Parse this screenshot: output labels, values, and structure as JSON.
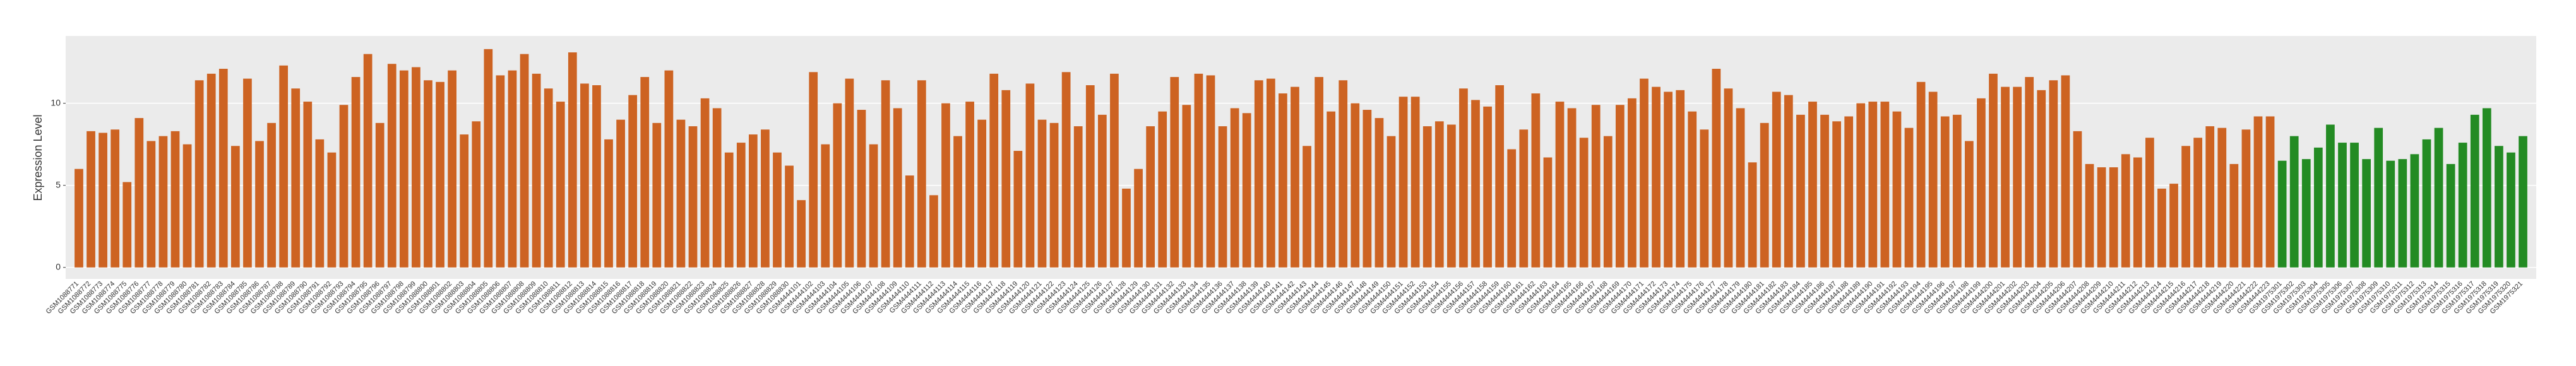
{
  "chart_data": {
    "type": "bar",
    "y_label": "Expression Level",
    "ylim": [
      -0.7,
      14.1
    ],
    "yticks": [
      0,
      5,
      10
    ],
    "grid": true,
    "series": [
      {
        "color": "#cd6322",
        "categories": [
          "GSM1088771",
          "GSM1088772",
          "GSM1088773",
          "GSM1088774",
          "GSM1088775",
          "GSM1088776",
          "GSM1088777",
          "GSM1088778",
          "GSM1088779",
          "GSM1088780",
          "GSM1088781",
          "GSM1088782",
          "GSM1088783",
          "GSM1088784",
          "GSM1088785",
          "GSM1088786",
          "GSM1088787",
          "GSM1088788",
          "GSM1088789",
          "GSM1088790",
          "GSM1088791",
          "GSM1088792",
          "GSM1088793",
          "GSM1088794",
          "GSM1088795",
          "GSM1088796",
          "GSM1088797",
          "GSM1088798",
          "GSM1088799",
          "GSM1088800",
          "GSM1088801",
          "GSM1088802",
          "GSM1088803",
          "GSM1088804",
          "GSM1088805",
          "GSM1088806",
          "GSM1088807",
          "GSM1088808",
          "GSM1088809",
          "GSM1088810",
          "GSM1088811",
          "GSM1088812",
          "GSM1088813",
          "GSM1088814",
          "GSM1088815",
          "GSM1088816",
          "GSM1088817",
          "GSM1088818",
          "GSM1088819",
          "GSM1088820",
          "GSM1088821",
          "GSM1088822",
          "GSM1088823",
          "GSM1088824",
          "GSM1088825",
          "GSM1088826",
          "GSM1088827",
          "GSM1088828",
          "GSM1088829",
          "GSM1088830",
          "GSM4444101",
          "GSM4444102",
          "GSM4444103",
          "GSM4444104",
          "GSM4444105",
          "GSM4444106",
          "GSM4444107",
          "GSM4444108",
          "GSM4444109",
          "GSM4444110",
          "GSM4444111",
          "GSM4444112",
          "GSM4444113",
          "GSM4444114",
          "GSM4444115",
          "GSM4444116",
          "GSM4444117",
          "GSM4444118",
          "GSM4444119",
          "GSM4444120",
          "GSM4444121",
          "GSM4444122",
          "GSM4444123",
          "GSM4444124",
          "GSM4444125",
          "GSM4444126",
          "GSM4444127",
          "GSM4444128",
          "GSM4444129",
          "GSM4444130",
          "GSM4444131",
          "GSM4444132",
          "GSM4444133",
          "GSM4444134",
          "GSM4444135",
          "GSM4444136",
          "GSM4444137",
          "GSM4444138",
          "GSM4444139",
          "GSM4444140",
          "GSM4444141",
          "GSM4444142",
          "GSM4444143",
          "GSM4444144",
          "GSM4444145",
          "GSM4444146",
          "GSM4444147",
          "GSM4444148",
          "GSM4444149",
          "GSM4444150",
          "GSM4444151",
          "GSM4444152",
          "GSM4444153",
          "GSM4444154",
          "GSM4444155",
          "GSM4444156",
          "GSM4444157",
          "GSM4444158",
          "GSM4444159",
          "GSM4444160",
          "GSM4444161",
          "GSM4444162",
          "GSM4444163",
          "GSM4444164",
          "GSM4444165",
          "GSM4444166",
          "GSM4444167",
          "GSM4444168",
          "GSM4444169",
          "GSM4444170",
          "GSM4444171",
          "GSM4444172",
          "GSM4444173",
          "GSM4444174",
          "GSM4444175",
          "GSM4444176",
          "GSM4444177",
          "GSM4444178",
          "GSM4444179",
          "GSM4444180",
          "GSM4444181",
          "GSM4444182",
          "GSM4444183",
          "GSM4444184",
          "GSM4444185",
          "GSM4444186",
          "GSM4444187",
          "GSM4444188",
          "GSM4444189",
          "GSM4444190",
          "GSM4444191",
          "GSM4444192",
          "GSM4444193",
          "GSM4444194",
          "GSM4444195",
          "GSM4444196",
          "GSM4444197",
          "GSM4444198",
          "GSM4444199",
          "GSM4444200",
          "GSM4444201",
          "GSM4444202",
          "GSM4444203",
          "GSM4444204",
          "GSM4444205",
          "GSM4444206",
          "GSM4444207",
          "GSM4444208",
          "GSM4444209",
          "GSM4444210",
          "GSM4444211",
          "GSM4444212",
          "GSM4444213",
          "GSM4444214",
          "GSM4444215",
          "GSM4444216",
          "GSM4444217",
          "GSM4444218",
          "GSM4444219",
          "GSM4444220",
          "GSM4444221",
          "GSM4444222",
          "GSM4444223"
        ],
        "values": [
          6.0,
          8.3,
          8.2,
          8.4,
          5.2,
          9.1,
          7.7,
          8.0,
          8.3,
          7.5,
          11.4,
          11.8,
          12.1,
          7.4,
          11.5,
          7.7,
          8.8,
          12.3,
          10.9,
          10.1,
          7.8,
          7.0,
          9.9,
          11.6,
          13.0,
          8.8,
          12.4,
          12.0,
          12.2,
          11.4,
          11.3,
          12.0,
          8.1,
          8.9,
          13.3,
          11.7,
          12.0,
          13.0,
          11.8,
          10.9,
          10.1,
          13.1,
          11.2,
          11.1,
          7.8,
          9.0,
          10.5,
          11.6,
          8.8,
          12.0,
          9.0,
          8.6,
          10.3,
          9.7,
          7.0,
          7.6,
          8.1,
          8.4,
          7.0,
          6.2,
          4.1,
          11.9,
          7.5,
          10.0,
          11.5,
          9.6,
          7.5,
          11.4,
          9.7,
          5.6,
          11.4,
          4.4,
          10.0,
          8.0,
          10.1,
          9.0,
          11.8,
          10.8,
          7.1,
          11.2,
          9.0,
          8.8,
          11.9,
          8.6,
          11.1,
          9.3,
          11.8,
          4.8,
          6.0,
          8.6,
          9.5,
          11.6,
          9.9,
          11.8,
          11.7,
          8.6,
          9.7,
          9.4,
          11.4,
          11.5,
          10.6,
          11.0,
          7.4,
          11.6,
          9.5,
          11.4,
          10.0,
          9.6,
          9.1,
          8.0,
          10.4,
          10.4,
          8.6,
          8.9,
          8.7,
          10.9,
          10.2,
          9.8,
          11.1,
          7.2,
          8.4,
          10.6,
          6.7,
          10.1,
          9.7,
          7.9,
          9.9,
          8.0,
          9.9,
          10.3,
          11.5,
          11.0,
          10.7,
          10.8,
          9.5,
          8.4,
          12.1,
          10.9,
          9.7,
          6.4,
          8.8,
          10.7,
          10.5,
          9.3,
          10.1,
          9.3,
          8.9,
          9.2,
          10.0,
          10.1,
          10.1,
          9.5,
          8.5,
          11.3,
          10.7,
          9.2,
          9.3,
          7.7,
          10.3,
          11.8,
          11.0,
          11.0,
          11.6,
          10.8,
          11.4,
          11.7,
          8.3,
          6.3,
          6.1,
          6.1,
          6.9,
          6.7,
          7.9,
          4.8,
          5.1,
          7.4,
          7.9,
          8.6,
          8.5,
          6.3,
          8.4,
          9.2,
          9.2
        ]
      },
      {
        "color": "#238b23",
        "categories": [
          "GSM1975301",
          "GSM1975302",
          "GSM1975303",
          "GSM1975304",
          "GSM1975305",
          "GSM1975306",
          "GSM1975307",
          "GSM1975308",
          "GSM1975309",
          "GSM1975310",
          "GSM1975311",
          "GSM1975312",
          "GSM1975313",
          "GSM1975314",
          "GSM1975315",
          "GSM1975316",
          "GSM1975317",
          "GSM1975318",
          "GSM1975319",
          "GSM1975320",
          "GSM1975321"
        ],
        "values": [
          6.5,
          8.0,
          6.6,
          7.3,
          8.7,
          7.6,
          7.6,
          6.6,
          8.5,
          6.5,
          6.6,
          6.9,
          7.8,
          8.5,
          6.3,
          7.6,
          9.3,
          9.7,
          7.4,
          7.0,
          8.0
        ]
      }
    ]
  }
}
